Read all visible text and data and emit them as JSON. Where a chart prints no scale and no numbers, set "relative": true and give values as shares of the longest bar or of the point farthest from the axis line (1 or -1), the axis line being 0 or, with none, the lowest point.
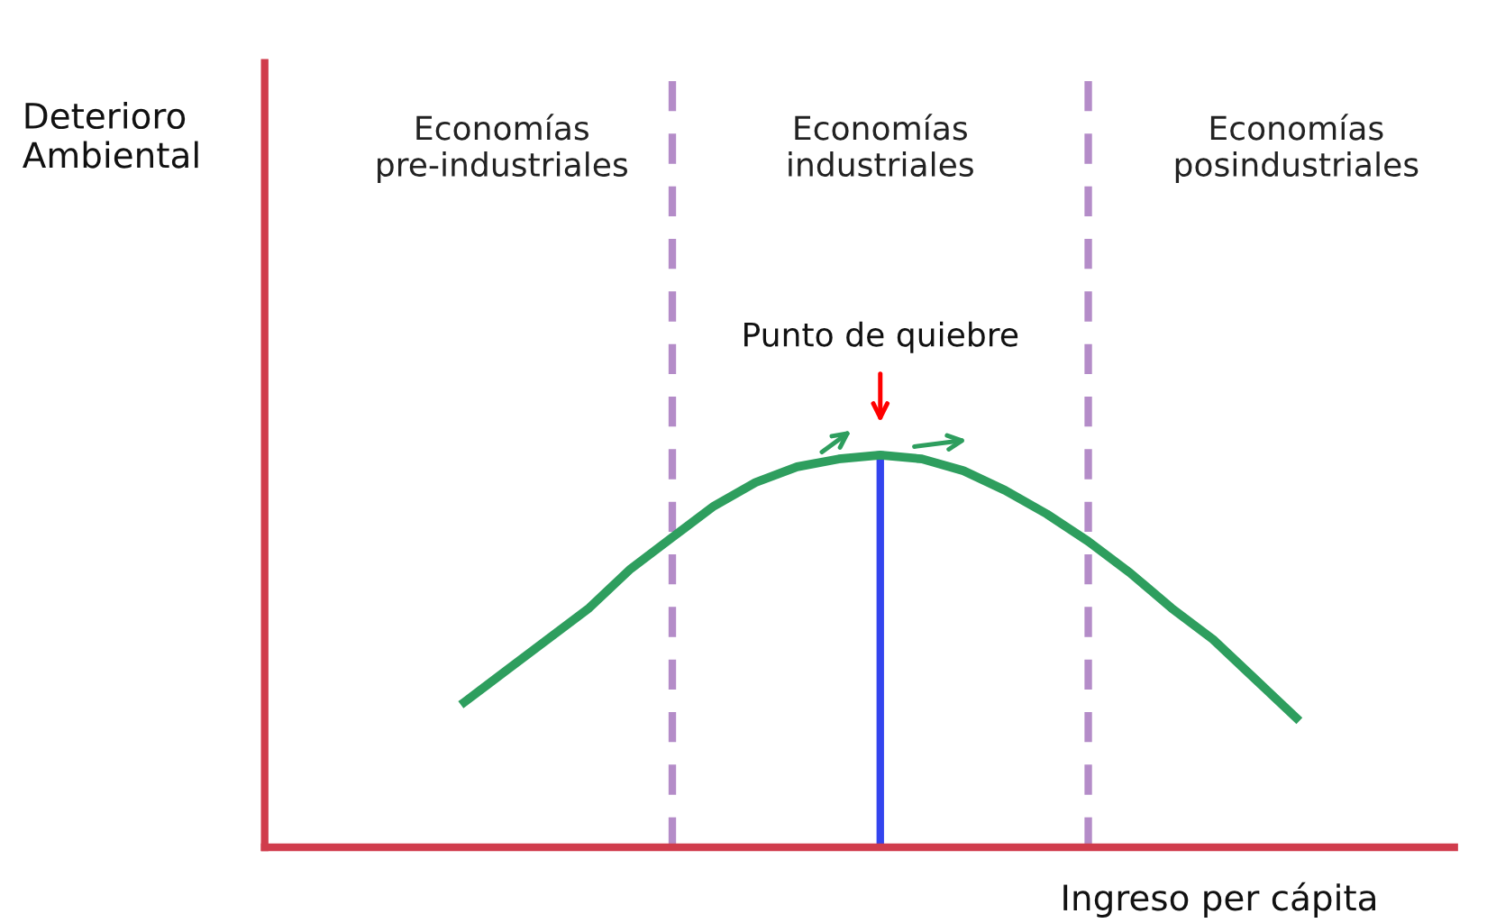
{
  "chart_data": {
    "type": "line",
    "relative": true,
    "xlabel": "Ingreso per cápita",
    "categories": [
      null,
      null,
      null,
      null,
      null,
      null,
      null,
      null,
      null,
      null,
      null,
      null,
      null,
      null,
      null,
      null,
      null,
      null,
      null,
      null,
      null
    ],
    "series": [
      {
        "color": "#2e9e5e",
        "values": [
          0.37,
          0.45,
          0.53,
          0.61,
          0.71,
          0.79,
          0.87,
          0.93,
          0.97,
          0.99,
          1,
          0.99,
          0.96,
          0.91,
          0.85,
          0.78,
          0.7,
          0.61,
          0.53,
          0.43,
          0.33
        ]
      }
    ],
    "annotations": [
      "Deterioro\nAmbiental",
      "Economías\npre-industriales",
      "Economías\nindustriales",
      "Economías\nposindustriales",
      "Punto de quiebre"
    ],
    "grid": false,
    "legend": false,
    "marker": "none",
    "line_style": "solid"
  }
}
